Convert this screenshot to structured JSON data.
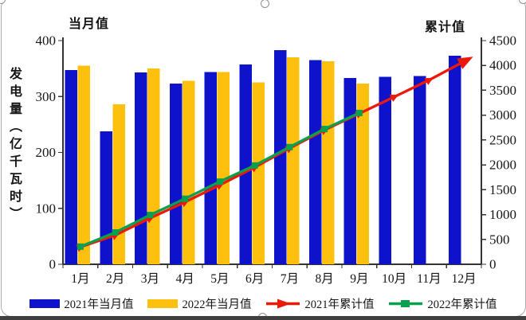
{
  "chart_data": {
    "type": "bar-line-combo",
    "categories": [
      "1月",
      "2月",
      "3月",
      "4月",
      "5月",
      "6月",
      "7月",
      "8月",
      "9月",
      "10月",
      "11月",
      "12月"
    ],
    "left_axis": {
      "title": "当月值",
      "label": "发电量（亿千瓦时）",
      "min": 0,
      "max": 400,
      "step": 100,
      "ticks": [
        "0",
        "100",
        "200",
        "300",
        "400"
      ]
    },
    "right_axis": {
      "title": "累计值",
      "min": 0,
      "max": 4500,
      "step": 500,
      "ticks": [
        "0",
        "500",
        "1000",
        "1500",
        "2000",
        "2500",
        "3000",
        "3500",
        "4000",
        "4500"
      ]
    },
    "series": [
      {
        "name": "2021年当月值",
        "type": "bar",
        "axis": "left",
        "color": "#0e13cb",
        "values": [
          347,
          238,
          343,
          323,
          344,
          357,
          383,
          365,
          333,
          335,
          337,
          373
        ]
      },
      {
        "name": "2022年当月值",
        "type": "bar",
        "axis": "left",
        "color": "#fec00e",
        "values": [
          355,
          286,
          350,
          328,
          344,
          325,
          370,
          363,
          323
        ]
      },
      {
        "name": "2021年累计值",
        "type": "line",
        "axis": "right",
        "color": "#ec1909",
        "marker": "triangle",
        "values": [
          347,
          585,
          928,
          1251,
          1595,
          1952,
          2335,
          2700,
          3033,
          3368,
          3705,
          4078
        ]
      },
      {
        "name": "2022年累计值",
        "type": "line",
        "axis": "right",
        "color": "#0ba04d",
        "marker": "square",
        "values": [
          355,
          641,
          991,
          1319,
          1663,
          1988,
          2358,
          2721,
          3044
        ]
      }
    ],
    "grid": false,
    "legend_position": "bottom",
    "axis_color": "#333333"
  }
}
